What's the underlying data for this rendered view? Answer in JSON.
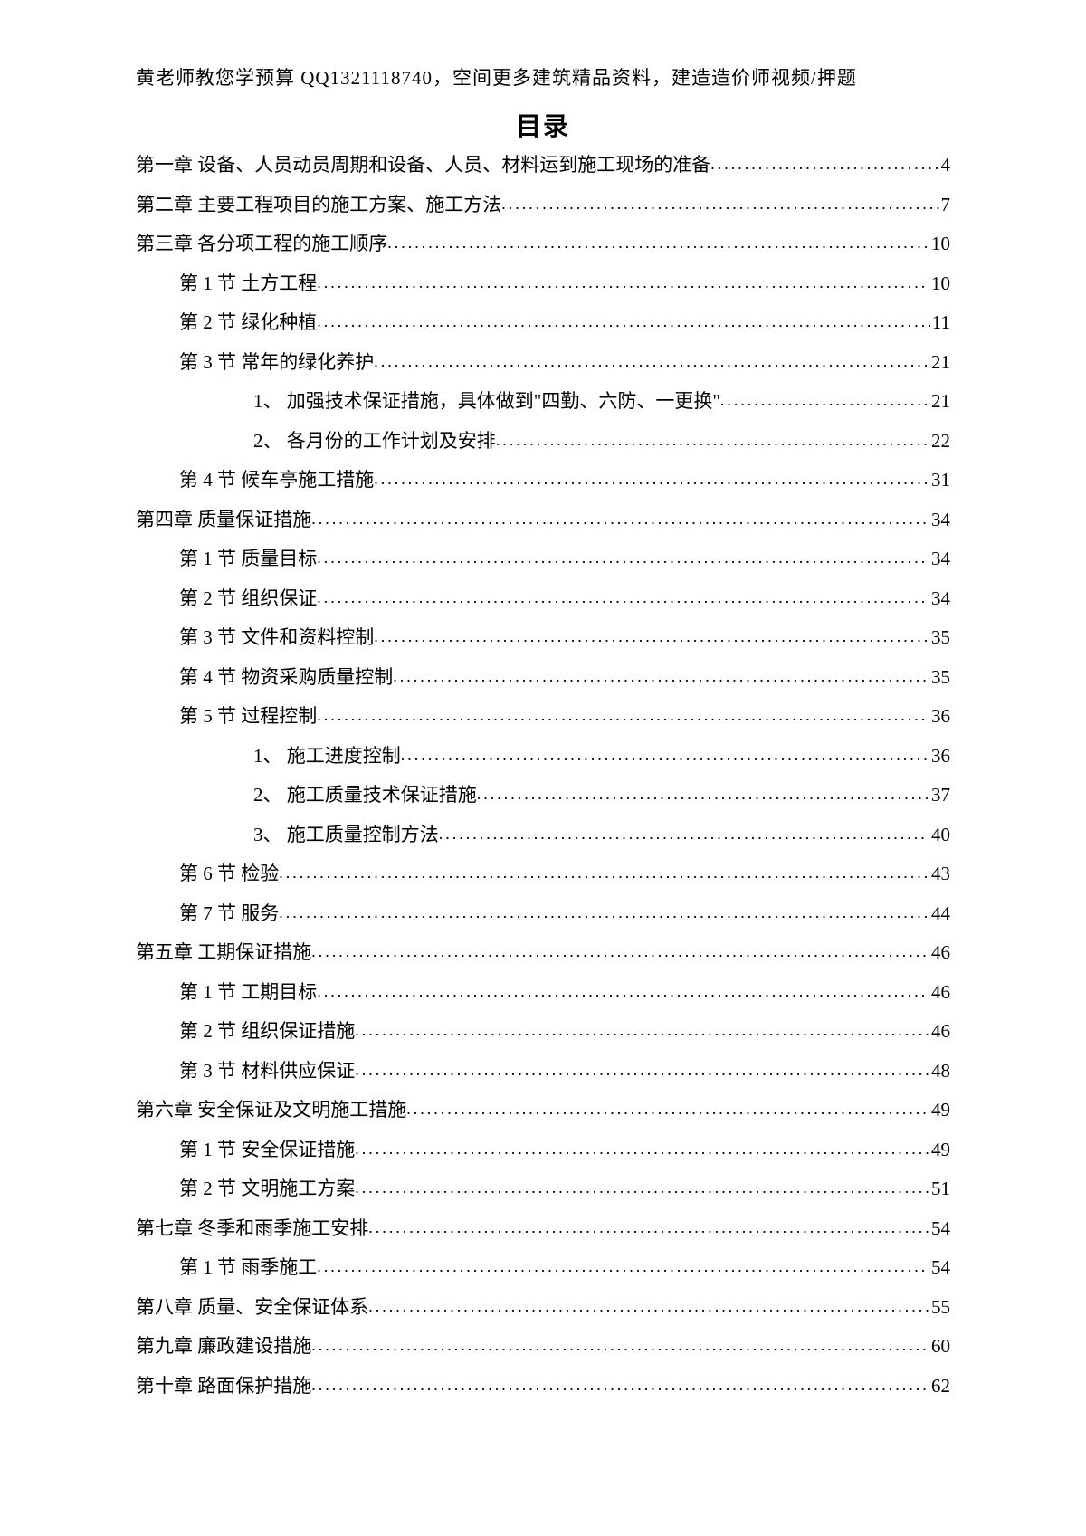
{
  "header": "黄老师教您学预算 QQ1321118740，空间更多建筑精品资料，建造造价师视频/押题",
  "title": "目录",
  "toc": [
    {
      "indent": 0,
      "label": "第一章 设备、人员动员周期和设备、人员、材料运到施工现场的准备",
      "page": "4"
    },
    {
      "indent": 0,
      "label": "第二章 主要工程项目的施工方案、施工方法",
      "page": "7"
    },
    {
      "indent": 0,
      "label": "第三章 各分项工程的施工顺序",
      "page": "10"
    },
    {
      "indent": 1,
      "label": "第 1 节 土方工程",
      "page": "10"
    },
    {
      "indent": 1,
      "label": "第 2 节 绿化种植",
      "page": "11"
    },
    {
      "indent": 1,
      "label": "第 3 节 常年的绿化养护",
      "page": "21"
    },
    {
      "indent": 2,
      "label": "1、 加强技术保证措施，具体做到\"四勤、六防、一更换\"",
      "page": "21"
    },
    {
      "indent": 2,
      "label": "2、 各月份的工作计划及安排",
      "page": "22"
    },
    {
      "indent": 1,
      "label": "第 4 节 候车亭施工措施",
      "page": "31"
    },
    {
      "indent": 0,
      "label": "第四章 质量保证措施",
      "page": "34"
    },
    {
      "indent": 1,
      "label": "第 1 节 质量目标",
      "page": "34"
    },
    {
      "indent": 1,
      "label": "第 2 节 组织保证",
      "page": "34"
    },
    {
      "indent": 1,
      "label": "第 3 节 文件和资料控制",
      "page": "35"
    },
    {
      "indent": 1,
      "label": "第 4 节 物资采购质量控制",
      "page": "35"
    },
    {
      "indent": 1,
      "label": "第 5 节 过程控制",
      "page": "36"
    },
    {
      "indent": 2,
      "label": "1、 施工进度控制",
      "page": "36"
    },
    {
      "indent": 2,
      "label": "2、 施工质量技术保证措施",
      "page": "37"
    },
    {
      "indent": 2,
      "label": "3、 施工质量控制方法",
      "page": "40"
    },
    {
      "indent": 1,
      "label": "第 6 节 检验",
      "page": "43"
    },
    {
      "indent": 1,
      "label": "第 7 节 服务",
      "page": "44"
    },
    {
      "indent": 0,
      "label": "第五章 工期保证措施",
      "page": "46"
    },
    {
      "indent": 1,
      "label": "第 1 节 工期目标",
      "page": "46"
    },
    {
      "indent": 1,
      "label": "第 2 节 组织保证措施",
      "page": "46"
    },
    {
      "indent": 1,
      "label": "第 3 节 材料供应保证",
      "page": "48"
    },
    {
      "indent": 0,
      "label": "第六章 安全保证及文明施工措施",
      "page": "49"
    },
    {
      "indent": 1,
      "label": "第 1 节 安全保证措施",
      "page": "49"
    },
    {
      "indent": 1,
      "label": "第 2 节 文明施工方案",
      "page": "51"
    },
    {
      "indent": 0,
      "label": "第七章 冬季和雨季施工安排",
      "page": "54"
    },
    {
      "indent": 1,
      "label": "第 1 节 雨季施工",
      "page": "54"
    },
    {
      "indent": 0,
      "label": "第八章 质量、安全保证体系",
      "page": "55"
    },
    {
      "indent": 0,
      "label": "第九章 廉政建设措施",
      "page": "60"
    },
    {
      "indent": 0,
      "label": "第十章 路面保护措施",
      "page": "62"
    }
  ]
}
